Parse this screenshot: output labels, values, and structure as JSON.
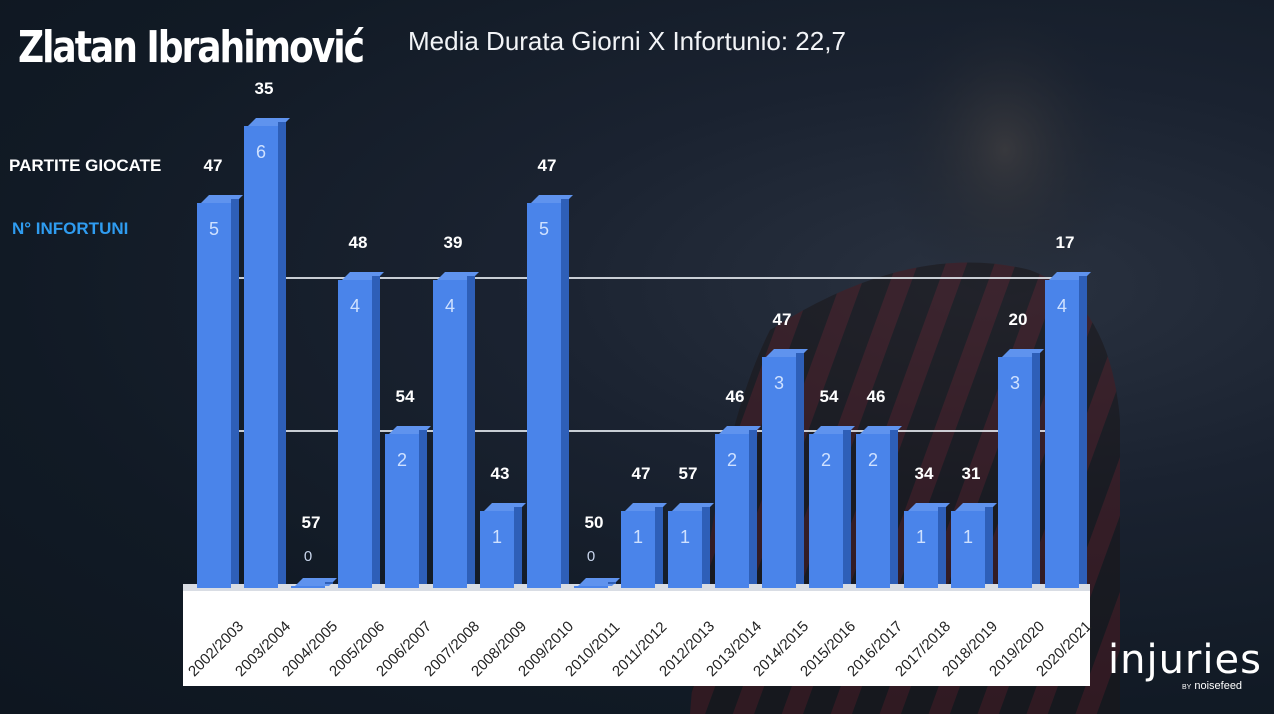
{
  "header": {
    "player_name": "Zlatan Ibrahimović",
    "subtitle": "Media Durata Giorni X Infortunio: 22,7"
  },
  "legend": {
    "played_label": "PARTITE GIOCATE",
    "injuries_label": "N° INFORTUNI",
    "played_color": "#ffffff",
    "injuries_color": "#2f9cf0"
  },
  "logo": {
    "name": "injuries",
    "by": "BY",
    "brand": "noisefeed"
  },
  "colors": {
    "bar": "#4a84ea",
    "bar_side": "#2e5fb8",
    "bar_top": "#5f93ee",
    "background": "#111a25"
  },
  "chart_data": {
    "type": "bar",
    "title": "Zlatan Ibrahimović",
    "subtitle": "Media Durata Giorni X Infortunio: 22,7",
    "xlabel": "",
    "ylabel": "",
    "categories": [
      "2002/2003",
      "2003/2004",
      "2004/2005",
      "2005/2006",
      "2006/2007",
      "2007/2008",
      "2008/2009",
      "2009/2010",
      "2010/2011",
      "2011/2012",
      "2012/2013",
      "2013/2014",
      "2014/2015",
      "2015/2016",
      "2016/2017",
      "2017/2018",
      "2018/2019",
      "2019/2020",
      "2020/2021"
    ],
    "series": [
      {
        "name": "N° INFORTUNI",
        "values": [
          5,
          6,
          0,
          4,
          2,
          4,
          1,
          5,
          0,
          1,
          1,
          2,
          3,
          2,
          2,
          1,
          1,
          3,
          4
        ]
      },
      {
        "name": "PARTITE GIOCATE",
        "values": [
          47,
          35,
          57,
          48,
          54,
          39,
          43,
          47,
          50,
          47,
          57,
          46,
          47,
          54,
          46,
          34,
          31,
          20,
          17
        ]
      }
    ],
    "ylim": [
      0,
      6
    ],
    "grid": true,
    "legend_position": "left",
    "three_d": true
  }
}
